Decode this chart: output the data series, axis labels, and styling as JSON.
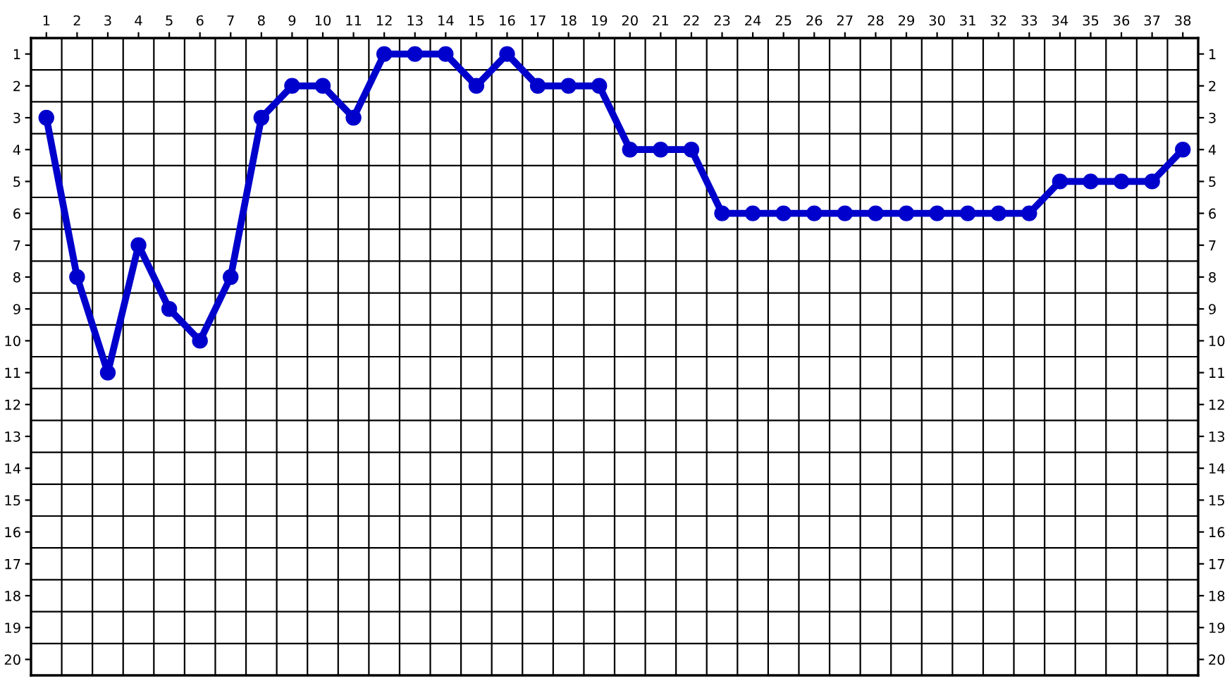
{
  "chart_data": {
    "type": "line",
    "x": [
      1,
      2,
      3,
      4,
      5,
      6,
      7,
      8,
      9,
      10,
      11,
      12,
      13,
      14,
      15,
      16,
      17,
      18,
      19,
      20,
      21,
      22,
      23,
      24,
      25,
      26,
      27,
      28,
      29,
      30,
      31,
      32,
      33,
      34,
      35,
      36,
      37,
      38
    ],
    "series": [
      {
        "color": "#0000cc",
        "values": [
          3,
          8,
          11,
          7,
          9,
          10,
          8,
          3,
          2,
          2,
          3,
          1,
          1,
          1,
          2,
          1,
          2,
          2,
          2,
          4,
          4,
          4,
          6,
          6,
          6,
          6,
          6,
          6,
          6,
          6,
          6,
          6,
          6,
          5,
          5,
          5,
          5,
          4
        ]
      }
    ],
    "marker": "circle",
    "line_style": "solid",
    "grid": true,
    "xlim": [
      0.5,
      38.5
    ],
    "xticks": [
      1,
      2,
      3,
      4,
      5,
      6,
      7,
      8,
      9,
      10,
      11,
      12,
      13,
      14,
      15,
      16,
      17,
      18,
      19,
      20,
      21,
      22,
      23,
      24,
      25,
      26,
      27,
      28,
      29,
      30,
      31,
      32,
      33,
      34,
      35,
      36,
      37,
      38
    ],
    "ylim": [
      20.5,
      0.5
    ],
    "yticks": [
      1,
      2,
      3,
      4,
      5,
      6,
      7,
      8,
      9,
      10,
      11,
      12,
      13,
      14,
      15,
      16,
      17,
      18,
      19,
      20
    ],
    "y2lim": [
      20.5,
      0.5
    ],
    "y2ticks": [
      1,
      2,
      3,
      4,
      5,
      6,
      7,
      8,
      9,
      10,
      11,
      12,
      13,
      14,
      15,
      16,
      17,
      18,
      19,
      20
    ]
  }
}
